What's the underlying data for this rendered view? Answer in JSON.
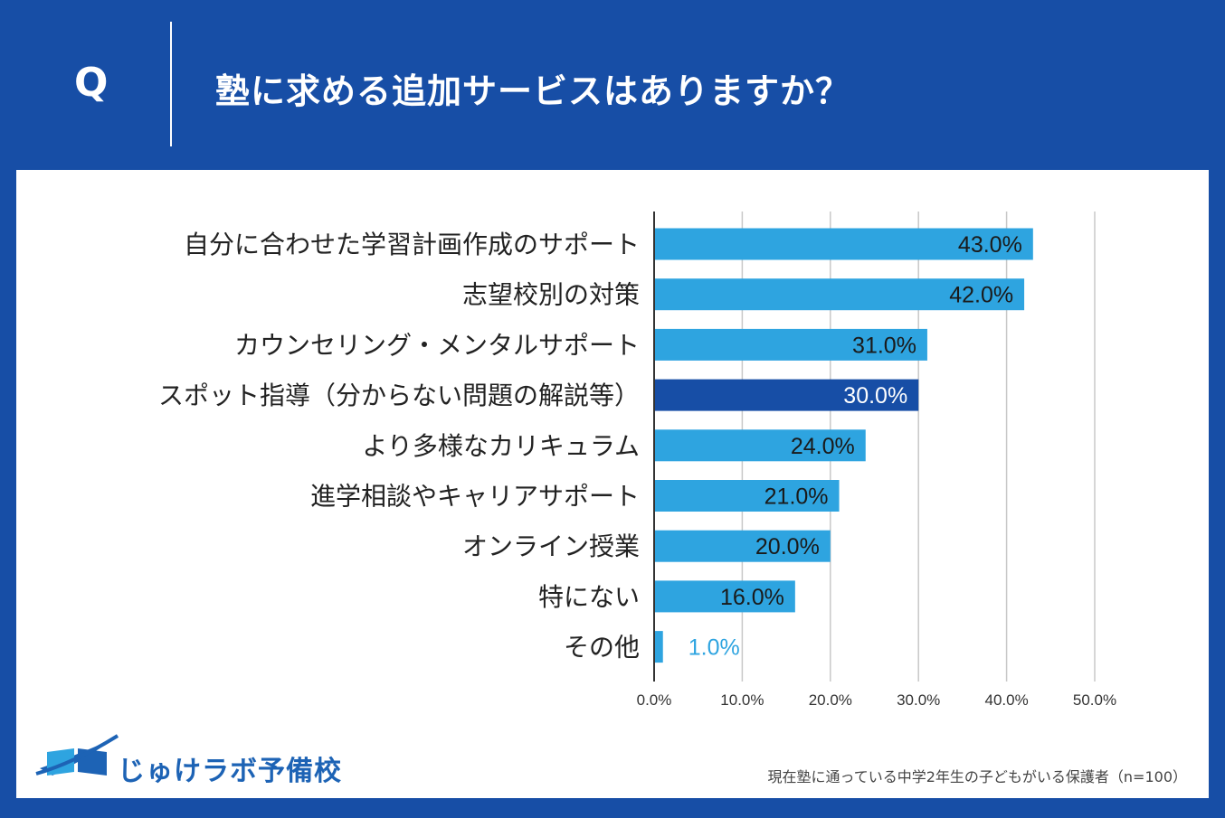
{
  "header": {
    "q_label": "Q",
    "question": "塾に求める追加サービスはありますか？"
  },
  "colors": {
    "background": "#174ea6",
    "bar": "#2ea4e0",
    "bar_highlight": "#174ea6",
    "grid": "#c8c8c8",
    "label_dark": "#1a1a1a",
    "label_light": "#ffffff",
    "label_outside": "#2ea4e0"
  },
  "chart_data": {
    "type": "bar",
    "orientation": "horizontal",
    "categories": [
      "自分に合わせた学習計画作成のサポート",
      "志望校別の対策",
      "カウンセリング・メンタルサポート",
      "スポット指導（分からない問題の解説等）",
      "より多様なカリキュラム",
      "進学相談やキャリアサポート",
      "オンライン授業",
      "特にない",
      "その他"
    ],
    "values": [
      43.0,
      42.0,
      31.0,
      30.0,
      24.0,
      21.0,
      20.0,
      16.0,
      1.0
    ],
    "value_labels": [
      "43.0%",
      "42.0%",
      "31.0%",
      "30.0%",
      "24.0%",
      "21.0%",
      "20.0%",
      "16.0%",
      "1.0%"
    ],
    "highlight_index": 3,
    "xlim": [
      0,
      50
    ],
    "xticks": [
      0,
      10,
      20,
      30,
      40,
      50
    ],
    "xtick_labels": [
      "0.0%",
      "10.0%",
      "20.0%",
      "30.0%",
      "40.0%",
      "50.0%"
    ],
    "title": "塾に求める追加サービスはありますか？",
    "xlabel": "",
    "ylabel": "",
    "grid": true
  },
  "footer": {
    "logo_text": "じゅけラボ予備校",
    "note": "現在塾に通っている中学2年生の子どもがいる保護者（n=100）"
  }
}
